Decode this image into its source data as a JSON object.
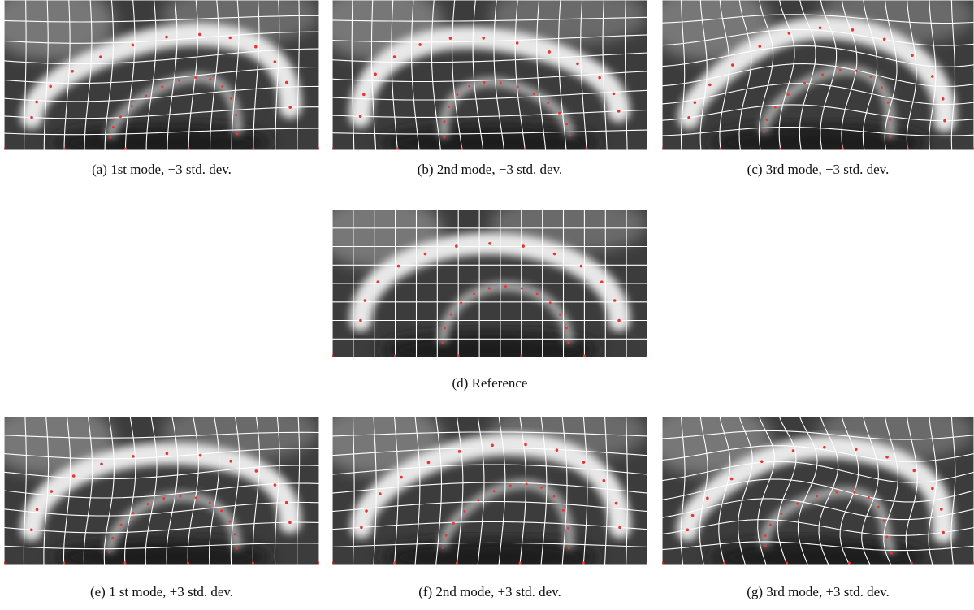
{
  "figure": {
    "panels": [
      {
        "caption": "(a) 1st mode, −3 std. dev."
      },
      {
        "caption": "(b) 2nd mode, −3 std. dev."
      },
      {
        "caption": "(c) 3rd mode, −3 std. dev."
      },
      {
        "caption": "(d) Reference"
      },
      {
        "caption": "(e) 1 st mode, +3 std. dev."
      },
      {
        "caption": "(f) 2nd mode, +3 std. dev."
      },
      {
        "caption": "(g) 3rd mode, +3 std. dev."
      }
    ]
  }
}
